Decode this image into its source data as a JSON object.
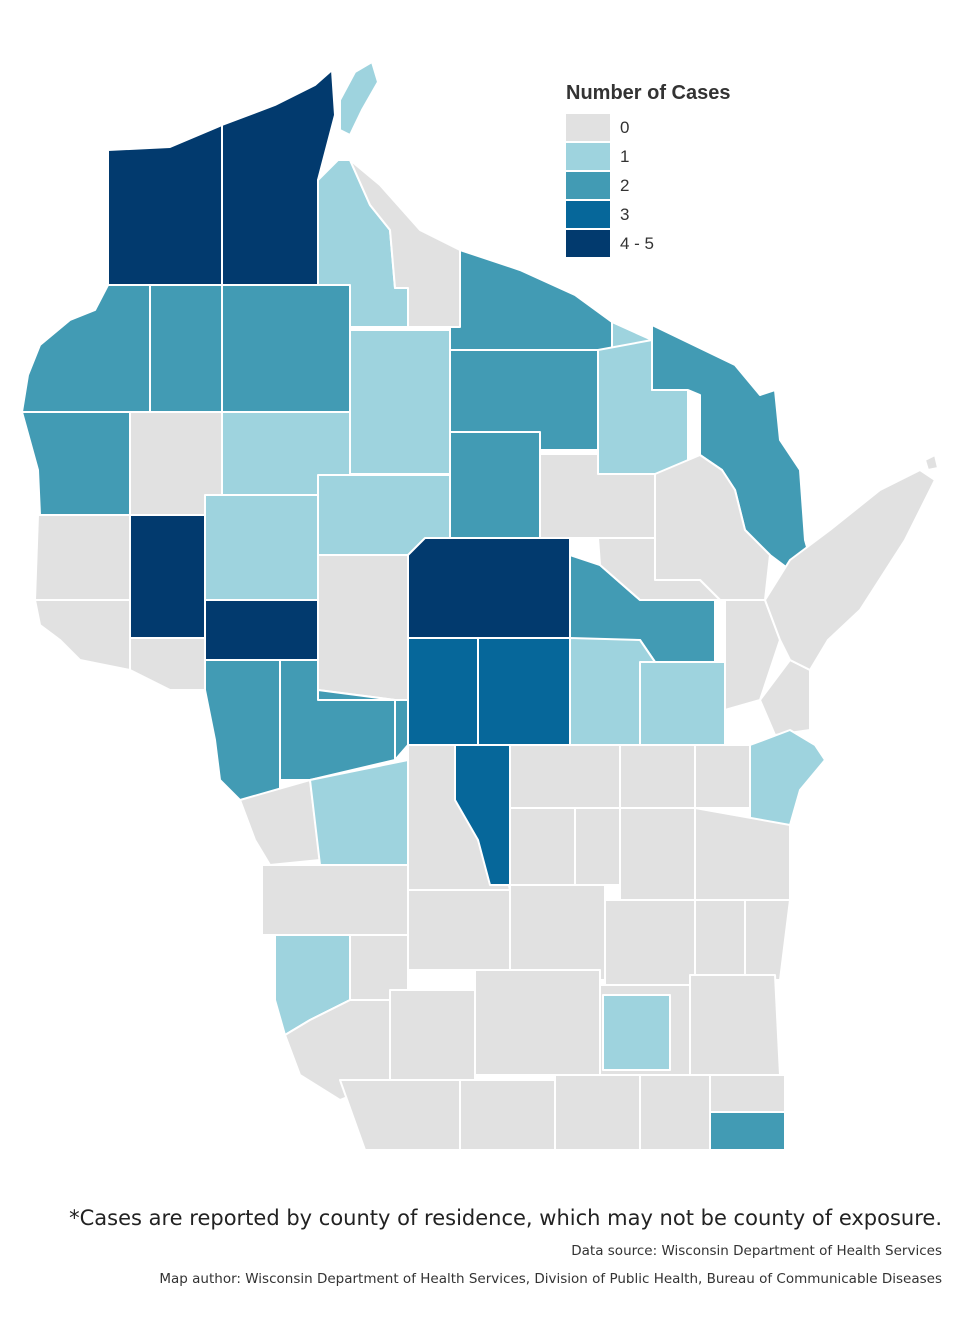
{
  "legend": {
    "title": "Number of Cases",
    "classes": [
      {
        "label": "0",
        "color": "#e1e1e1"
      },
      {
        "label": "1",
        "color": "#9ed3de"
      },
      {
        "label": "2",
        "color": "#429bb4"
      },
      {
        "label": "3",
        "color": "#06679a"
      },
      {
        "label": "4 - 5",
        "color": "#023a6e"
      }
    ]
  },
  "counties": [
    {
      "id": "douglas",
      "cases_class": 4
    },
    {
      "id": "bayfield",
      "cases_class": 4
    },
    {
      "id": "ashland",
      "cases_class": 1
    },
    {
      "id": "iron",
      "cases_class": 0
    },
    {
      "id": "vilas",
      "cases_class": 2
    },
    {
      "id": "florence",
      "cases_class": 1
    },
    {
      "id": "forest",
      "cases_class": 1
    },
    {
      "id": "marinette",
      "cases_class": 2
    },
    {
      "id": "burnett",
      "cases_class": 2
    },
    {
      "id": "washburn",
      "cases_class": 2
    },
    {
      "id": "sawyer",
      "cases_class": 2
    },
    {
      "id": "price",
      "cases_class": 1
    },
    {
      "id": "oneida",
      "cases_class": 2
    },
    {
      "id": "lincoln",
      "cases_class": 2
    },
    {
      "id": "langlade",
      "cases_class": 0
    },
    {
      "id": "oconto",
      "cases_class": 0
    },
    {
      "id": "polk",
      "cases_class": 2
    },
    {
      "id": "barron",
      "cases_class": 0
    },
    {
      "id": "rusk",
      "cases_class": 1
    },
    {
      "id": "taylor",
      "cases_class": 1
    },
    {
      "id": "marathon",
      "cases_class": 4
    },
    {
      "id": "shawano",
      "cases_class": 2
    },
    {
      "id": "menominee",
      "cases_class": 0
    },
    {
      "id": "stcroix",
      "cases_class": 0
    },
    {
      "id": "dunn",
      "cases_class": 4
    },
    {
      "id": "chippewa",
      "cases_class": 1
    },
    {
      "id": "clark",
      "cases_class": 0
    },
    {
      "id": "eauclaire",
      "cases_class": 4
    },
    {
      "id": "pierce",
      "cases_class": 0
    },
    {
      "id": "pepin",
      "cases_class": 0
    },
    {
      "id": "buffalo",
      "cases_class": 2
    },
    {
      "id": "trempealeau",
      "cases_class": 2
    },
    {
      "id": "jackson",
      "cases_class": 2
    },
    {
      "id": "wood",
      "cases_class": 3
    },
    {
      "id": "portage",
      "cases_class": 3
    },
    {
      "id": "waupaca",
      "cases_class": 1
    },
    {
      "id": "outagamie",
      "cases_class": 1
    },
    {
      "id": "brown",
      "cases_class": 0
    },
    {
      "id": "kewaunee",
      "cases_class": 0
    },
    {
      "id": "door",
      "cases_class": 0
    },
    {
      "id": "lacrosse",
      "cases_class": 0
    },
    {
      "id": "monroe",
      "cases_class": 1
    },
    {
      "id": "juneau",
      "cases_class": 0
    },
    {
      "id": "adams",
      "cases_class": 3
    },
    {
      "id": "waushara",
      "cases_class": 0
    },
    {
      "id": "winnebago",
      "cases_class": 0
    },
    {
      "id": "calumet",
      "cases_class": 0
    },
    {
      "id": "manitowoc",
      "cases_class": 1
    },
    {
      "id": "vernon",
      "cases_class": 0
    },
    {
      "id": "sauk",
      "cases_class": 0
    },
    {
      "id": "marquette",
      "cases_class": 0
    },
    {
      "id": "greenlake",
      "cases_class": 0
    },
    {
      "id": "fonddulac",
      "cases_class": 0
    },
    {
      "id": "sheboygan",
      "cases_class": 0
    },
    {
      "id": "crawford",
      "cases_class": 1
    },
    {
      "id": "richland",
      "cases_class": 0
    },
    {
      "id": "columbia",
      "cases_class": 0
    },
    {
      "id": "dodge",
      "cases_class": 0
    },
    {
      "id": "washington",
      "cases_class": 0
    },
    {
      "id": "ozaukee",
      "cases_class": 0
    },
    {
      "id": "grant",
      "cases_class": 0
    },
    {
      "id": "iowa",
      "cases_class": 0
    },
    {
      "id": "dane",
      "cases_class": 0
    },
    {
      "id": "jefferson",
      "cases_class": 0
    },
    {
      "id": "waukesha",
      "cases_class": 1
    },
    {
      "id": "milwaukee",
      "cases_class": 0
    },
    {
      "id": "lafayette",
      "cases_class": 0
    },
    {
      "id": "green",
      "cases_class": 0
    },
    {
      "id": "rock",
      "cases_class": 0
    },
    {
      "id": "walworth",
      "cases_class": 0
    },
    {
      "id": "racine",
      "cases_class": 0
    },
    {
      "id": "kenosha",
      "cases_class": 2
    },
    {
      "id": "apostle-islands",
      "cases_class": 1
    },
    {
      "id": "washington-island",
      "cases_class": 0
    }
  ],
  "footnote": "*Cases are reported by county of residence, which may not be county of exposure.",
  "source": "Data source: Wisconsin Department of Health Services",
  "author": "Map author: Wisconsin Department of Health Services, Division of Public Health, Bureau of Communicable Diseases"
}
